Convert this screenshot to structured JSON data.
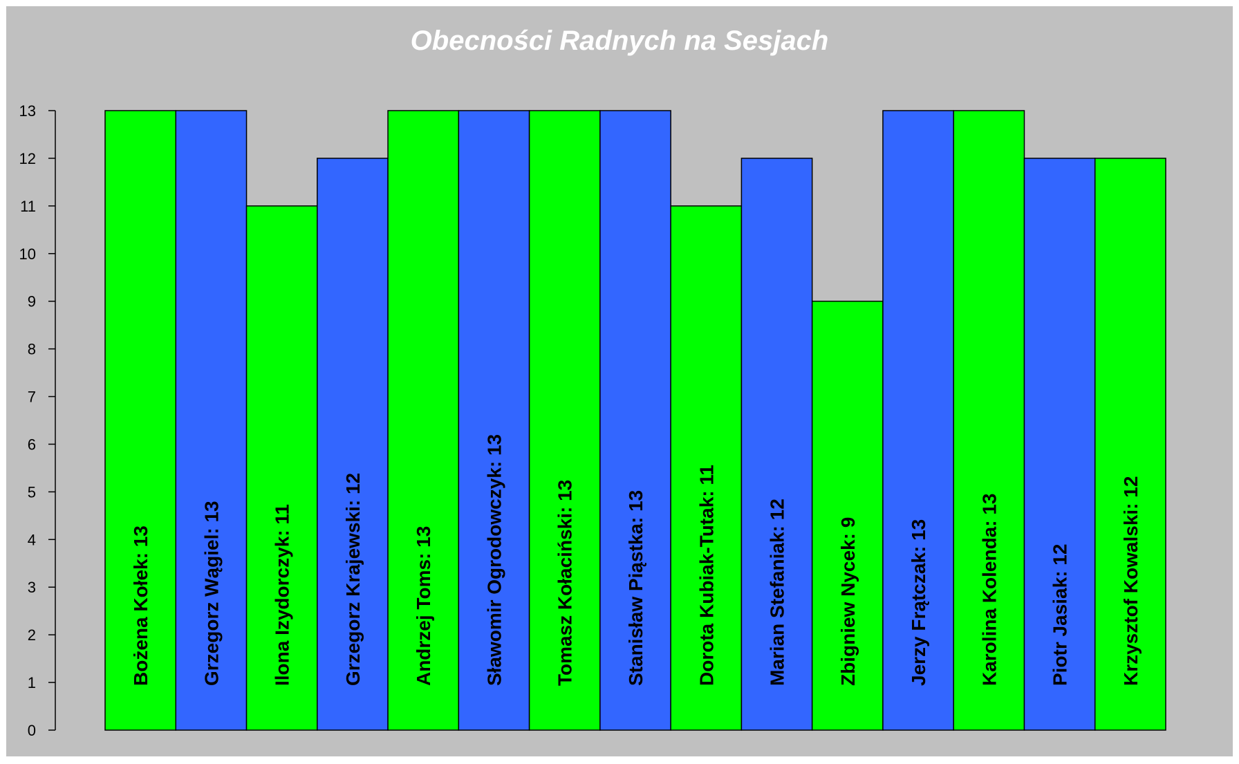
{
  "chart_data": {
    "type": "bar",
    "title": "Obecności Radnych na Sesjach",
    "xlabel": "",
    "ylabel": "",
    "ylim": [
      0,
      13
    ],
    "yticks": [
      "0",
      "1",
      "2",
      "3",
      "4",
      "5",
      "6",
      "7",
      "8",
      "9",
      "10",
      "11",
      "12",
      "13"
    ],
    "grid": false,
    "legend": "none",
    "categories": [
      "Bożena Kołek",
      "Grzegorz Wągiel",
      "Ilona Izydorczyk",
      "Grzegorz Krajewski",
      "Andrzej Toms",
      "Sławomir Ogrodowczyk",
      "Tomasz Kołaciński",
      "Stanisław Piąstka",
      "Dorota Kubiak-Tutak",
      "Marian Stefaniak",
      "Zbigniew Nycek",
      "Jerzy Frątczak",
      "Karolina Kolenda",
      "Piotr Jasiak",
      "Krzysztof Kowalski"
    ],
    "values": [
      13,
      13,
      11,
      12,
      13,
      13,
      13,
      13,
      11,
      12,
      9,
      13,
      13,
      12,
      12
    ],
    "labels": [
      "Bożena Kołek: 13",
      "Grzegorz Wągiel: 13",
      "Ilona Izydorczyk: 11",
      "Grzegorz Krajewski: 12",
      "Andrzej Toms: 13",
      "Sławomir Ogrodowczyk: 13",
      "Tomasz Kołaciński: 13",
      "Stanisław Piąstka: 13",
      "Dorota Kubiak-Tutak: 11",
      "Marian Stefaniak: 12",
      "Zbigniew Nycek: 9",
      "Jerzy Frątczak: 13",
      "Karolina Kolenda: 13",
      "Piotr Jasiak: 12",
      "Krzysztof Kowalski: 12"
    ],
    "colors": {
      "bar_colors": [
        "#00ff00",
        "#3366ff"
      ],
      "background": "#c0c0c0",
      "title": "#ffffff",
      "bar_outline": "#000000"
    }
  }
}
